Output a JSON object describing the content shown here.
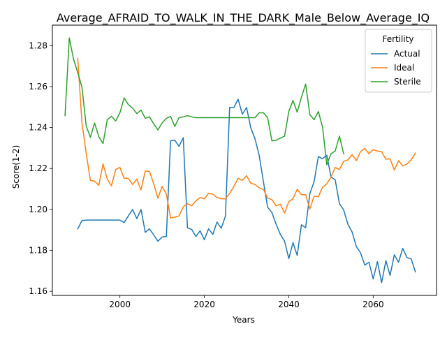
{
  "chart_data": {
    "type": "line",
    "title": "Average_AFRAID_TO_WALK_IN_THE_DARK_Male_Below_Average_IQ",
    "xlabel": "Years",
    "ylabel": "Score(1-2)",
    "xlim": [
      1984,
      2075
    ],
    "ylim": [
      1.158,
      1.29
    ],
    "xticks": [
      2000,
      2020,
      2040,
      2060
    ],
    "yticks": [
      1.16,
      1.18,
      1.2,
      1.22,
      1.24,
      1.26,
      1.28
    ],
    "ytick_labels": [
      "1.16",
      "1.18",
      "1.20",
      "1.22",
      "1.24",
      "1.26",
      "1.28"
    ],
    "grid": false,
    "legend": {
      "title": "Fertility",
      "position": "top-right"
    },
    "series": [
      {
        "name": "Actual",
        "color": "#1f77b4",
        "x": [
          1990,
          1991,
          1992,
          1993,
          1994,
          1995,
          1996,
          1997,
          1998,
          1999,
          2000,
          2001,
          2002,
          2003,
          2004,
          2005,
          2006,
          2007,
          2008,
          2009,
          2010,
          2011,
          2012,
          2013,
          2014,
          2015,
          2016,
          2017,
          2018,
          2019,
          2020,
          2021,
          2022,
          2023,
          2024,
          2025,
          2026,
          2027,
          2028,
          2029,
          2030,
          2031,
          2032,
          2033,
          2034,
          2035,
          2036,
          2037,
          2038,
          2039,
          2040,
          2041,
          2042,
          2043,
          2044,
          2045,
          2046,
          2047,
          2048,
          2049,
          2050,
          2051,
          2052,
          2053,
          2054,
          2055,
          2056,
          2057,
          2058,
          2059,
          2060,
          2061,
          2062,
          2063,
          2064,
          2065,
          2066,
          2067,
          2068,
          2069,
          2070
        ],
        "values": [
          1.1905,
          1.1945,
          1.1948,
          1.1948,
          1.1948,
          1.1948,
          1.1948,
          1.1948,
          1.1948,
          1.1948,
          1.1948,
          1.1935,
          1.1968,
          1.2,
          1.1955,
          1.2,
          1.1888,
          1.1905,
          1.1875,
          1.1845,
          1.1865,
          1.1868,
          1.2335,
          1.2338,
          1.2308,
          1.235,
          1.191,
          1.1902,
          1.1868,
          1.1895,
          1.1852,
          1.1905,
          1.1878,
          1.1938,
          1.1908,
          1.1968,
          1.2498,
          1.2498,
          1.2538,
          1.2465,
          1.2498,
          1.2398,
          1.2345,
          1.2262,
          1.2135,
          1.201,
          1.1985,
          1.1928,
          1.1878,
          1.1845,
          1.176,
          1.1838,
          1.1775,
          1.1925,
          1.191,
          1.2078,
          1.2135,
          1.2258,
          1.2248,
          1.2265,
          1.2158,
          1.2145,
          1.2028,
          1.1998,
          1.1928,
          1.189,
          1.1818,
          1.1788,
          1.1728,
          1.1742,
          1.166,
          1.1745,
          1.1642,
          1.175,
          1.1678,
          1.1778,
          1.1742,
          1.181,
          1.1765,
          1.1758,
          1.1695
        ]
      },
      {
        "name": "Ideal",
        "color": "#ff7f0e",
        "x": [
          1990,
          1991,
          1992,
          1993,
          1994,
          1995,
          1996,
          1997,
          1998,
          1999,
          2000,
          2001,
          2002,
          2003,
          2004,
          2005,
          2006,
          2007,
          2008,
          2009,
          2010,
          2011,
          2012,
          2013,
          2014,
          2015,
          2016,
          2017,
          2018,
          2019,
          2020,
          2021,
          2022,
          2023,
          2024,
          2025,
          2026,
          2027,
          2028,
          2029,
          2030,
          2031,
          2032,
          2033,
          2034,
          2035,
          2036,
          2037,
          2038,
          2039,
          2040,
          2041,
          2042,
          2043,
          2044,
          2045,
          2046,
          2047,
          2048,
          2049,
          2050,
          2051,
          2052,
          2053,
          2054,
          2055,
          2056,
          2057,
          2058,
          2059,
          2060,
          2061,
          2062,
          2063,
          2064,
          2065,
          2066,
          2067,
          2068,
          2069,
          2070
        ],
        "values": [
          1.2738,
          1.2425,
          1.2275,
          1.2142,
          1.2138,
          1.2118,
          1.2222,
          1.2148,
          1.2115,
          1.2195,
          1.2205,
          1.2152,
          1.2152,
          1.2122,
          1.2148,
          1.2095,
          1.2188,
          1.2185,
          1.2125,
          1.2055,
          1.2112,
          1.2075,
          1.1958,
          1.1962,
          1.1968,
          1.2012,
          1.2028,
          1.2018,
          1.2042,
          1.2058,
          1.2052,
          1.2078,
          1.2075,
          1.2058,
          1.2052,
          1.2052,
          1.2078,
          1.2112,
          1.2152,
          1.2142,
          1.2165,
          1.2128,
          1.2122,
          1.2105,
          1.2098,
          1.2055,
          1.2048,
          1.2018,
          1.2025,
          1.1982,
          1.2038,
          1.2052,
          1.2098,
          1.2072,
          1.2072,
          1.2002,
          1.2065,
          1.2062,
          1.2108,
          1.2125,
          1.2158,
          1.2205,
          1.2195,
          1.2235,
          1.2242,
          1.2268,
          1.2238,
          1.2282,
          1.2298,
          1.2272,
          1.2292,
          1.2285,
          1.2282,
          1.2245,
          1.2248,
          1.2192,
          1.2238,
          1.2212,
          1.2222,
          1.2242,
          1.2275
        ]
      },
      {
        "name": "Sterile",
        "color": "#2ca02c",
        "x": [
          1987,
          1988,
          1989,
          1990,
          1991,
          1992,
          1993,
          1994,
          1995,
          1996,
          1997,
          1998,
          1999,
          2000,
          2001,
          2002,
          2003,
          2004,
          2005,
          2006,
          2007,
          2008,
          2009,
          2010,
          2011,
          2012,
          2013,
          2014,
          2015,
          2016,
          2017,
          2018,
          2019,
          2020,
          2021,
          2022,
          2023,
          2024,
          2025,
          2026,
          2027,
          2028,
          2029,
          2030,
          2031,
          2032,
          2033,
          2034,
          2035,
          2036,
          2037,
          2038,
          2039,
          2040,
          2041,
          2042,
          2043,
          2044,
          2045,
          2046,
          2047,
          2048,
          2049,
          2050,
          2051,
          2052,
          2053
        ],
        "values": [
          1.2458,
          1.2838,
          1.2735,
          1.2668,
          1.2598,
          1.2408,
          1.2352,
          1.2422,
          1.2355,
          1.2322,
          1.2438,
          1.2455,
          1.2432,
          1.2472,
          1.2545,
          1.2512,
          1.2495,
          1.2468,
          1.2485,
          1.2445,
          1.2452,
          1.2418,
          1.2388,
          1.2422,
          1.2445,
          1.2455,
          1.2405,
          1.2448,
          1.2452,
          1.2458,
          1.2452,
          1.2448,
          1.2448,
          1.2448,
          1.2448,
          1.2448,
          1.2448,
          1.2448,
          1.2448,
          1.2448,
          1.2448,
          1.2448,
          1.2448,
          1.2448,
          1.2448,
          1.2448,
          1.2472,
          1.2472,
          1.2448,
          1.2335,
          1.2338,
          1.2348,
          1.2358,
          1.2478,
          1.2532,
          1.2475,
          1.2548,
          1.2612,
          1.2462,
          1.2438,
          1.2478,
          1.2402,
          1.2218,
          1.2272,
          1.2285,
          1.2358,
          1.2272
        ]
      }
    ]
  }
}
